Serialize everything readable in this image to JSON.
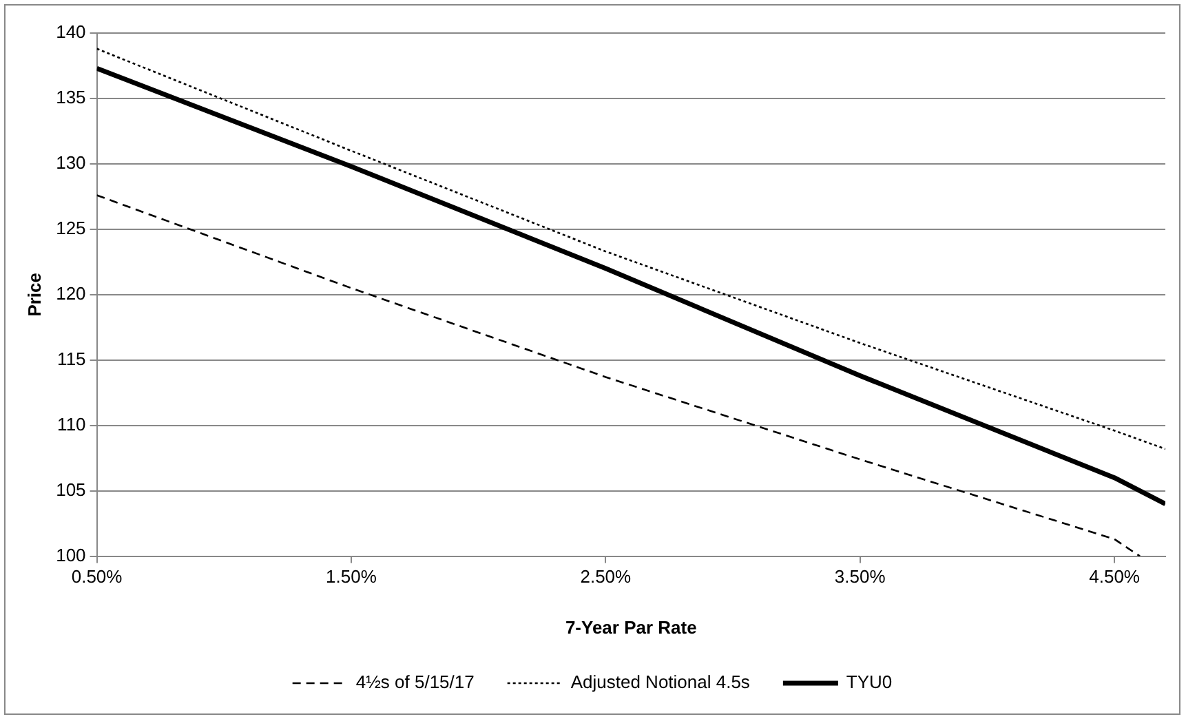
{
  "chart_data": {
    "type": "line",
    "xlabel": "7-Year Par Rate",
    "ylabel": "Price",
    "xlim": [
      0.5,
      4.7
    ],
    "xticks": [
      {
        "value": 0.5,
        "label": "0.50%"
      },
      {
        "value": 1.5,
        "label": "1.50%"
      },
      {
        "value": 2.5,
        "label": "2.50%"
      },
      {
        "value": 3.5,
        "label": "3.50%"
      },
      {
        "value": 4.5,
        "label": "4.50%"
      }
    ],
    "ylim": [
      100,
      140
    ],
    "yticks": [
      100,
      105,
      110,
      115,
      120,
      125,
      130,
      135,
      140
    ],
    "grid": "y",
    "legend": "bottom",
    "marker": "none",
    "series": [
      {
        "name": "4½s of 5/15/17",
        "color": "#000000",
        "line_style": "dashed",
        "x": [
          0.5,
          1.5,
          2.5,
          3.5,
          4.5,
          4.6
        ],
        "values": [
          127.6,
          120.5,
          113.7,
          107.4,
          101.3,
          100
        ]
      },
      {
        "name": "Adjusted Notional 4.5s",
        "color": "#000000",
        "line_style": "dotted",
        "x": [
          0.5,
          1.5,
          2.5,
          3.5,
          4.5,
          4.7
        ],
        "values": [
          138.8,
          131,
          123.3,
          116.3,
          109.6,
          108.2
        ]
      },
      {
        "name": "TYU0",
        "color": "#000000",
        "line_style": "solid",
        "x": [
          0.5,
          1.5,
          2.5,
          3.5,
          4.5,
          4.7
        ],
        "values": [
          137.3,
          129.8,
          122.0,
          113.8,
          106.0,
          104.0
        ]
      }
    ]
  }
}
